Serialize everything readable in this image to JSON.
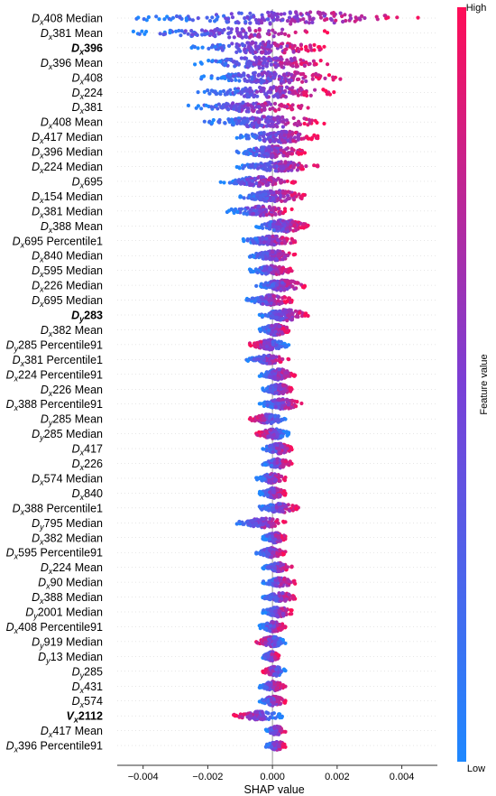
{
  "chart_data": {
    "type": "scatter",
    "subtype": "shap-beeswarm",
    "xlabel": "SHAP value",
    "xlim": [
      -0.0048,
      0.0051
    ],
    "xticks": [
      -0.004,
      -0.002,
      0.0,
      0.002,
      0.004
    ],
    "xtick_labels": [
      "−0.004",
      "−0.002",
      "0.000",
      "0.002",
      "0.004"
    ],
    "colorbar": {
      "label": "Feature value",
      "high": "High",
      "low": "Low",
      "color_low": "#1e88ff",
      "color_high": "#ff0d57"
    },
    "features": [
      {
        "var": "D",
        "sub": "x",
        "name": "408 Median",
        "bold": false,
        "min": -0.0042,
        "max": 0.0045,
        "lowSide": "left",
        "spread": 1.0
      },
      {
        "var": "D",
        "sub": "x",
        "name": "381 Mean",
        "bold": false,
        "min": -0.0043,
        "max": 0.0017,
        "lowSide": "left",
        "spread": 0.5
      },
      {
        "var": "D",
        "sub": "x",
        "name": "396",
        "bold": true,
        "min": -0.0025,
        "max": 0.0016,
        "lowSide": "left",
        "spread": 0.9
      },
      {
        "var": "D",
        "sub": "x",
        "name": "396 Mean",
        "bold": false,
        "min": -0.0024,
        "max": 0.0017,
        "lowSide": "left",
        "spread": 0.8
      },
      {
        "var": "D",
        "sub": "x",
        "name": "408",
        "bold": false,
        "min": -0.0022,
        "max": 0.0021,
        "lowSide": "left",
        "spread": 0.9
      },
      {
        "var": "D",
        "sub": "x",
        "name": "224",
        "bold": false,
        "min": -0.0023,
        "max": 0.0019,
        "lowSide": "left",
        "spread": 0.8
      },
      {
        "var": "D",
        "sub": "x",
        "name": "381",
        "bold": false,
        "min": -0.0026,
        "max": 0.0011,
        "lowSide": "left",
        "spread": 0.6
      },
      {
        "var": "D",
        "sub": "x",
        "name": "408 Mean",
        "bold": false,
        "min": -0.0021,
        "max": 0.0016,
        "lowSide": "left",
        "spread": 0.8
      },
      {
        "var": "D",
        "sub": "x",
        "name": "417 Median",
        "bold": false,
        "min": -0.0011,
        "max": 0.0014,
        "lowSide": "left",
        "spread": 0.8
      },
      {
        "var": "D",
        "sub": "x",
        "name": "396 Median",
        "bold": false,
        "min": -0.0011,
        "max": 0.001,
        "lowSide": "left",
        "spread": 0.8
      },
      {
        "var": "D",
        "sub": "x",
        "name": "224 Median",
        "bold": false,
        "min": -0.0011,
        "max": 0.0014,
        "lowSide": "left",
        "spread": 0.6
      },
      {
        "var": "D",
        "sub": "x",
        "name": "695",
        "bold": false,
        "min": -0.0016,
        "max": 0.0007,
        "lowSide": "left",
        "spread": 0.5
      },
      {
        "var": "D",
        "sub": "x",
        "name": "154 Median",
        "bold": false,
        "min": -0.001,
        "max": 0.001,
        "lowSide": "left",
        "spread": 0.8
      },
      {
        "var": "D",
        "sub": "x",
        "name": "381 Median",
        "bold": false,
        "min": -0.0014,
        "max": 0.0006,
        "lowSide": "left",
        "spread": 0.5
      },
      {
        "var": "D",
        "sub": "x",
        "name": "388 Mean",
        "bold": false,
        "min": -0.0005,
        "max": 0.0011,
        "lowSide": "left",
        "spread": 0.9
      },
      {
        "var": "D",
        "sub": "x",
        "name": "695 Percentile1",
        "bold": false,
        "min": -0.0009,
        "max": 0.0007,
        "lowSide": "left",
        "spread": 0.5
      },
      {
        "var": "D",
        "sub": "x",
        "name": "840 Median",
        "bold": false,
        "min": -0.0007,
        "max": 0.0007,
        "lowSide": "left",
        "spread": 0.5
      },
      {
        "var": "D",
        "sub": "x",
        "name": "595 Median",
        "bold": false,
        "min": -0.0007,
        "max": 0.0006,
        "lowSide": "left",
        "spread": 0.5
      },
      {
        "var": "D",
        "sub": "x",
        "name": "226 Median",
        "bold": false,
        "min": -0.0005,
        "max": 0.001,
        "lowSide": "left",
        "spread": 0.7
      },
      {
        "var": "D",
        "sub": "x",
        "name": "695 Median",
        "bold": false,
        "min": -0.0008,
        "max": 0.0006,
        "lowSide": "left",
        "spread": 0.6
      },
      {
        "var": "D",
        "sub": "y",
        "name": "283",
        "bold": true,
        "min": -0.0004,
        "max": 0.0011,
        "lowSide": "left",
        "spread": 0.8
      },
      {
        "var": "D",
        "sub": "x",
        "name": "382 Mean",
        "bold": false,
        "min": -0.0004,
        "max": 0.0005,
        "lowSide": "left",
        "spread": 0.7
      },
      {
        "var": "D",
        "sub": "y",
        "name": "285 Percentile91",
        "bold": false,
        "min": -0.0007,
        "max": 0.0005,
        "lowSide": "right",
        "spread": 0.6
      },
      {
        "var": "D",
        "sub": "x",
        "name": "381 Percentile1",
        "bold": false,
        "min": -0.0008,
        "max": 0.0005,
        "lowSide": "left",
        "spread": 0.4
      },
      {
        "var": "D",
        "sub": "x",
        "name": "224 Percentile91",
        "bold": false,
        "min": -0.0004,
        "max": 0.0007,
        "lowSide": "left",
        "spread": 0.7
      },
      {
        "var": "D",
        "sub": "x",
        "name": "226 Mean",
        "bold": false,
        "min": -0.0003,
        "max": 0.0006,
        "lowSide": "left",
        "spread": 0.6
      },
      {
        "var": "D",
        "sub": "x",
        "name": "388 Percentile91",
        "bold": false,
        "min": -0.0004,
        "max": 0.0009,
        "lowSide": "left",
        "spread": 0.6
      },
      {
        "var": "D",
        "sub": "y",
        "name": "285 Mean",
        "bold": false,
        "min": -0.0007,
        "max": 0.0004,
        "lowSide": "right",
        "spread": 0.5
      },
      {
        "var": "D",
        "sub": "y",
        "name": "285 Median",
        "bold": false,
        "min": -0.0005,
        "max": 0.0005,
        "lowSide": "right",
        "spread": 0.6
      },
      {
        "var": "D",
        "sub": "x",
        "name": "417",
        "bold": false,
        "min": -0.0003,
        "max": 0.0006,
        "lowSide": "left",
        "spread": 0.6
      },
      {
        "var": "D",
        "sub": "x",
        "name": "226",
        "bold": false,
        "min": -0.0003,
        "max": 0.0006,
        "lowSide": "left",
        "spread": 0.5
      },
      {
        "var": "D",
        "sub": "x",
        "name": "574 Median",
        "bold": false,
        "min": -0.0005,
        "max": 0.0004,
        "lowSide": "left",
        "spread": 0.5
      },
      {
        "var": "D",
        "sub": "x",
        "name": "840",
        "bold": false,
        "min": -0.0004,
        "max": 0.0004,
        "lowSide": "left",
        "spread": 0.6
      },
      {
        "var": "D",
        "sub": "x",
        "name": "388 Percentile1",
        "bold": false,
        "min": -0.0004,
        "max": 0.0008,
        "lowSide": "left",
        "spread": 0.5
      },
      {
        "var": "D",
        "sub": "y",
        "name": "795 Median",
        "bold": false,
        "min": -0.0011,
        "max": 0.0004,
        "lowSide": "left",
        "spread": 0.5
      },
      {
        "var": "D",
        "sub": "x",
        "name": "382 Median",
        "bold": false,
        "min": -0.0003,
        "max": 0.0004,
        "lowSide": "left",
        "spread": 0.6
      },
      {
        "var": "D",
        "sub": "x",
        "name": "595 Percentile91",
        "bold": false,
        "min": -0.0005,
        "max": 0.0004,
        "lowSide": "left",
        "spread": 0.5
      },
      {
        "var": "D",
        "sub": "x",
        "name": "224 Mean",
        "bold": false,
        "min": -0.0003,
        "max": 0.0006,
        "lowSide": "left",
        "spread": 0.4
      },
      {
        "var": "D",
        "sub": "x",
        "name": "90 Median",
        "bold": false,
        "min": -0.0003,
        "max": 0.0007,
        "lowSide": "left",
        "spread": 0.4
      },
      {
        "var": "D",
        "sub": "x",
        "name": "388 Median",
        "bold": false,
        "min": -0.0003,
        "max": 0.0007,
        "lowSide": "left",
        "spread": 0.4
      },
      {
        "var": "D",
        "sub": "y",
        "name": "2001 Median",
        "bold": false,
        "min": -0.0003,
        "max": 0.0006,
        "lowSide": "left",
        "spread": 0.6
      },
      {
        "var": "D",
        "sub": "x",
        "name": "408 Percentile91",
        "bold": false,
        "min": -0.0004,
        "max": 0.0004,
        "lowSide": "left",
        "spread": 0.6
      },
      {
        "var": "D",
        "sub": "y",
        "name": "919 Median",
        "bold": false,
        "min": -0.0005,
        "max": 0.0004,
        "lowSide": "right",
        "spread": 0.6
      },
      {
        "var": "D",
        "sub": "y",
        "name": "13 Median",
        "bold": false,
        "min": -0.0003,
        "max": 0.0002,
        "lowSide": "left",
        "spread": 0.5
      },
      {
        "var": "D",
        "sub": "y",
        "name": "285",
        "bold": false,
        "min": -0.0003,
        "max": 0.0004,
        "lowSide": "right",
        "spread": 0.5
      },
      {
        "var": "D",
        "sub": "x",
        "name": "431",
        "bold": false,
        "min": -0.0004,
        "max": 0.0004,
        "lowSide": "left",
        "spread": 0.5
      },
      {
        "var": "D",
        "sub": "x",
        "name": "574",
        "bold": false,
        "min": -0.0004,
        "max": 0.0004,
        "lowSide": "left",
        "spread": 0.5
      },
      {
        "var": "V",
        "sub": "x",
        "name": "2112",
        "bold": true,
        "min": -0.0012,
        "max": 0.0003,
        "lowSide": "right",
        "spread": 0.4
      },
      {
        "var": "D",
        "sub": "x",
        "name": "417 Mean",
        "bold": false,
        "min": -0.0002,
        "max": 0.0004,
        "lowSide": "left",
        "spread": 0.4
      },
      {
        "var": "D",
        "sub": "x",
        "name": "396 Percentile91",
        "bold": false,
        "min": -0.0002,
        "max": 0.0004,
        "lowSide": "left",
        "spread": 0.4
      }
    ]
  }
}
